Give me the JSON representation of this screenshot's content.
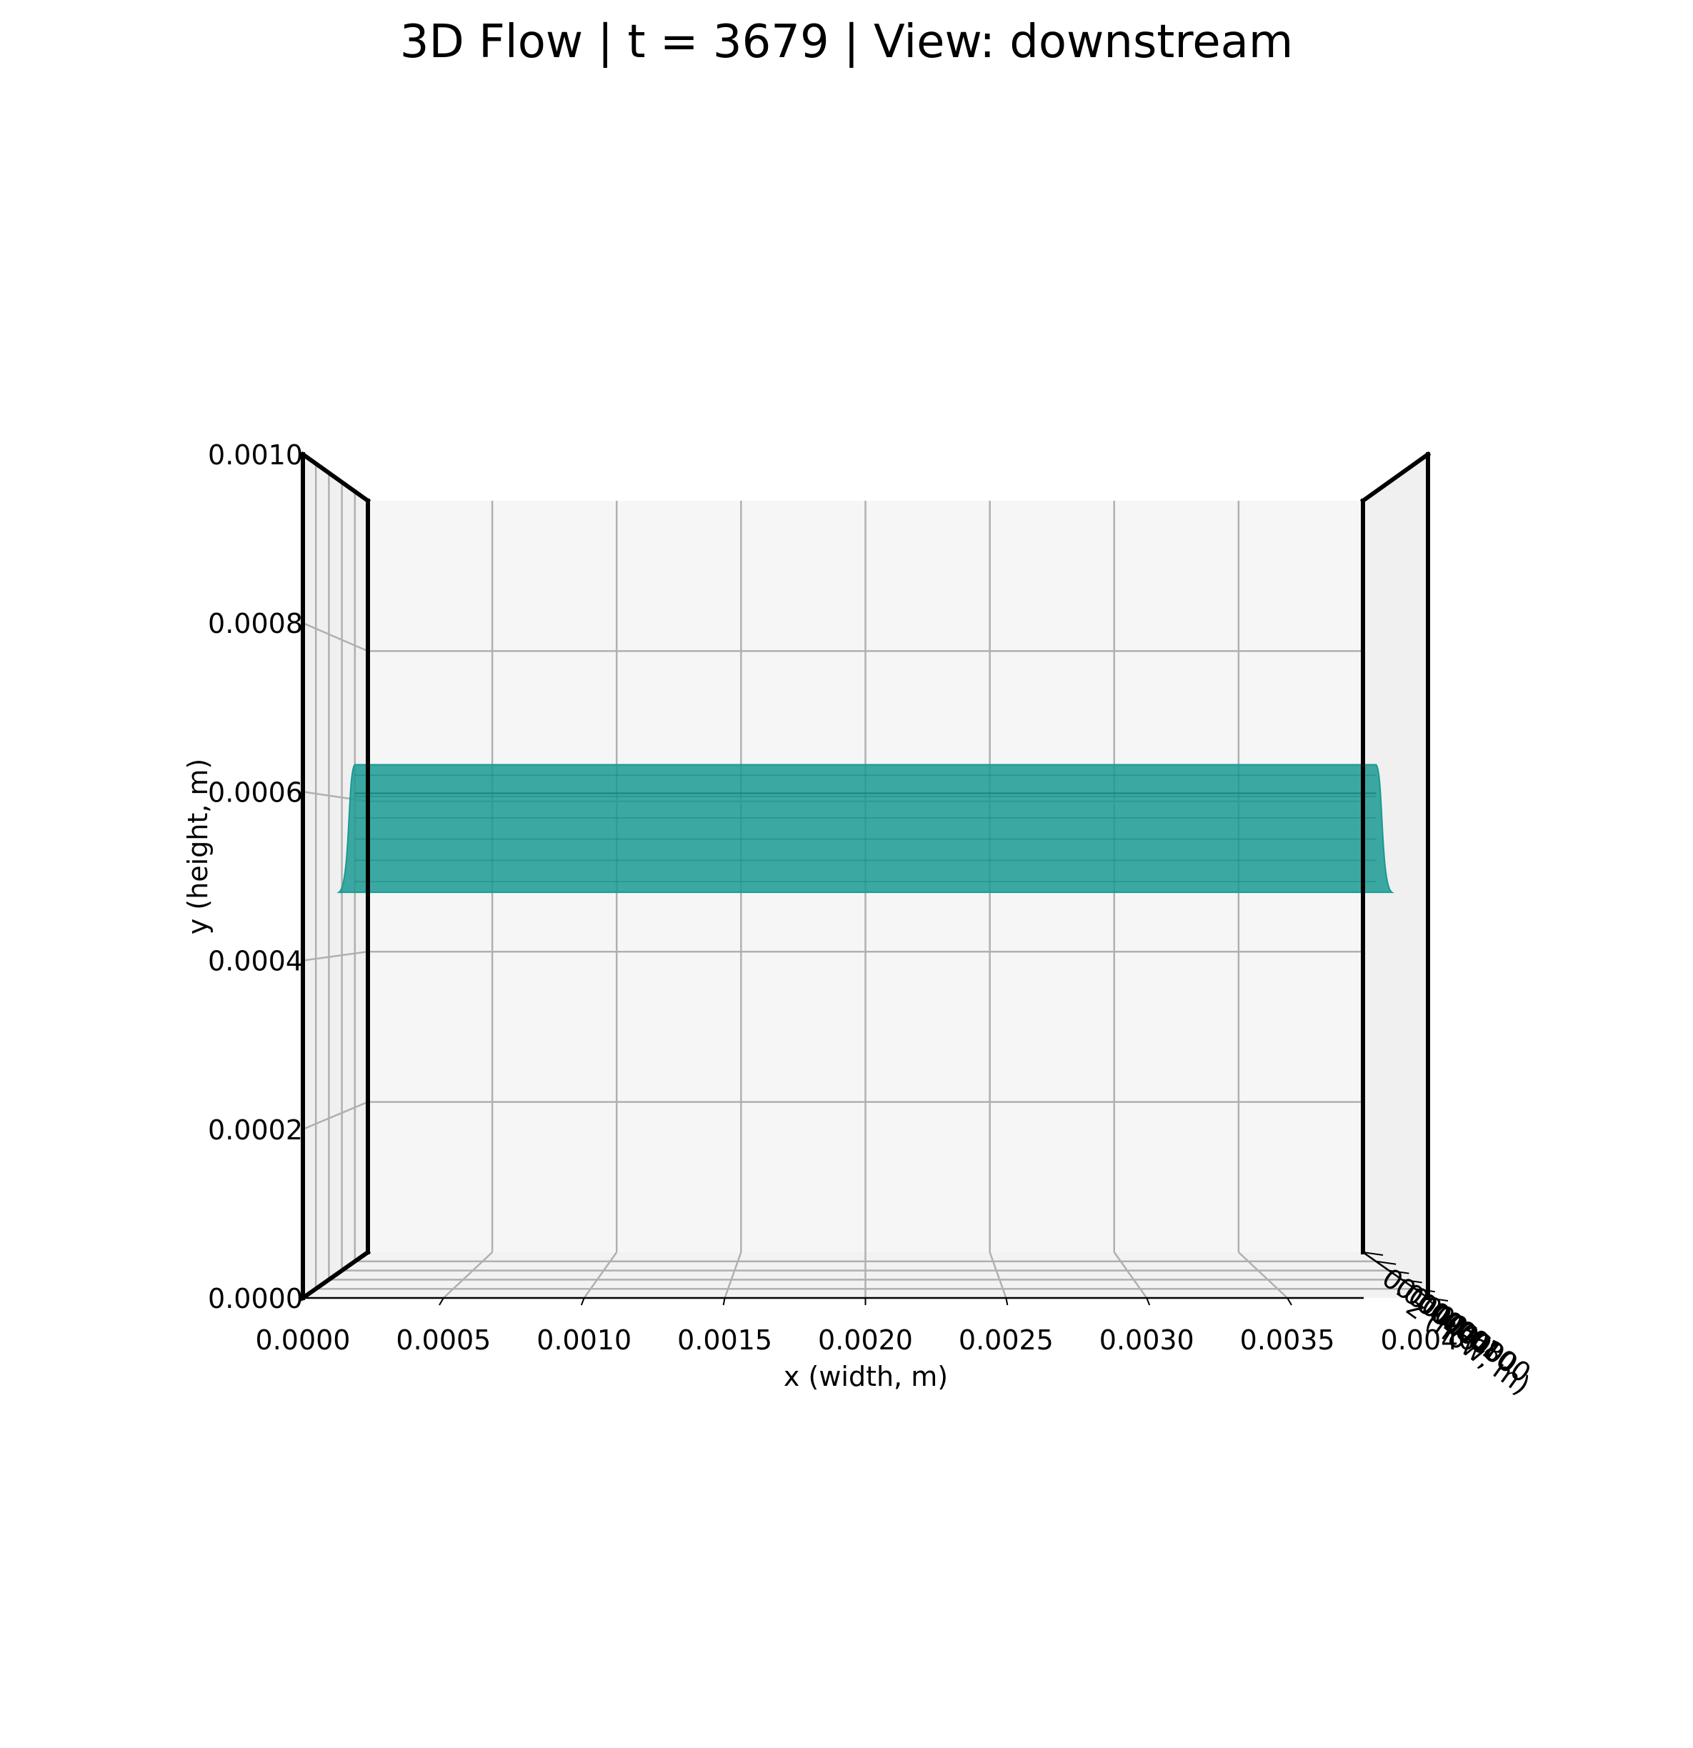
{
  "chart_data": {
    "type": "surface3d",
    "title": "3D Flow | t = 3679 | View: downstream",
    "xlabel": "x (width, m)",
    "ylabel": "y (height, m)",
    "zlabel": "z (flow, m)",
    "view": "downstream",
    "xlim": [
      0.0,
      0.004
    ],
    "ylim": [
      0.0,
      0.001
    ],
    "x_ticks": [
      "0.0000",
      "0.0005",
      "0.0010",
      "0.0015",
      "0.0020",
      "0.0025",
      "0.0030",
      "0.0035",
      "0.0040"
    ],
    "y_ticks": [
      "0.0000",
      "0.0002",
      "0.0004",
      "0.0006",
      "0.0008",
      "0.0010"
    ],
    "z_ticks": [
      "0.0000",
      "0.0020",
      "0.0040",
      "0.0060",
      "0.0080",
      "0.0100"
    ],
    "grid": true,
    "surface": {
      "y_bottom": 0.00048,
      "y_top": 0.00064,
      "x_start": 0.0001,
      "x_end": 0.0039,
      "color": "#1a9a92"
    },
    "colors": {
      "pane": "#f6f6f6",
      "grid": "#b0b0b0",
      "frame": "#000000",
      "surface": "#1a9a92"
    }
  }
}
